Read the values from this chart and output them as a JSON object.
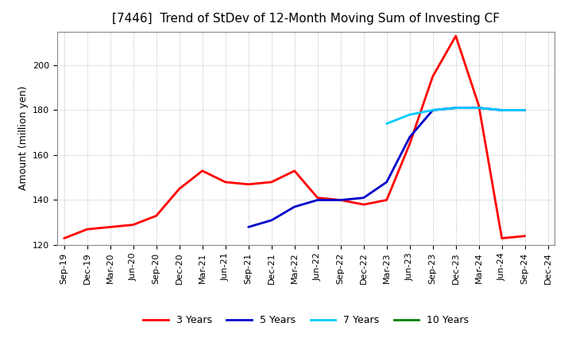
{
  "title": "[7446]  Trend of StDev of 12-Month Moving Sum of Investing CF",
  "ylabel": "Amount (million yen)",
  "ylim": [
    120,
    215
  ],
  "yticks": [
    120,
    140,
    160,
    180,
    200
  ],
  "x_labels": [
    "Sep-19",
    "Dec-19",
    "Mar-20",
    "Jun-20",
    "Sep-20",
    "Dec-20",
    "Mar-21",
    "Jun-21",
    "Sep-21",
    "Dec-21",
    "Mar-22",
    "Jun-22",
    "Sep-22",
    "Dec-22",
    "Mar-23",
    "Jun-23",
    "Sep-23",
    "Dec-23",
    "Mar-24",
    "Jun-24",
    "Sep-24",
    "Dec-24"
  ],
  "series": {
    "3 Years": {
      "color": "#FF0000",
      "linewidth": 2.0,
      "data_x": [
        0,
        1,
        2,
        3,
        4,
        5,
        6,
        7,
        8,
        9,
        10,
        11,
        12,
        13,
        14,
        15,
        16,
        17,
        18,
        19,
        20
      ],
      "data_y": [
        123,
        127,
        128,
        129,
        133,
        145,
        153,
        148,
        147,
        148,
        153,
        141,
        140,
        138,
        140,
        165,
        195,
        213,
        182,
        123,
        124
      ]
    },
    "5 Years": {
      "color": "#0000CC",
      "linewidth": 2.0,
      "data_x": [
        8,
        9,
        10,
        11,
        12,
        13,
        14,
        15,
        16,
        17,
        18,
        19,
        20
      ],
      "data_y": [
        128,
        131,
        137,
        140,
        140,
        141,
        148,
        168,
        180,
        181,
        181,
        180,
        180
      ]
    },
    "7 Years": {
      "color": "#00CCFF",
      "linewidth": 2.0,
      "data_x": [
        14,
        15,
        16,
        17,
        18,
        19,
        20
      ],
      "data_y": [
        174,
        178,
        180,
        181,
        181,
        180,
        180
      ]
    },
    "10 Years": {
      "color": "#008000",
      "linewidth": 2.0,
      "data_x": [],
      "data_y": []
    }
  },
  "background_color": "#FFFFFF",
  "grid_color": "#999999",
  "title_fontsize": 11,
  "label_fontsize": 9,
  "tick_fontsize": 8,
  "legend_fontsize": 9
}
